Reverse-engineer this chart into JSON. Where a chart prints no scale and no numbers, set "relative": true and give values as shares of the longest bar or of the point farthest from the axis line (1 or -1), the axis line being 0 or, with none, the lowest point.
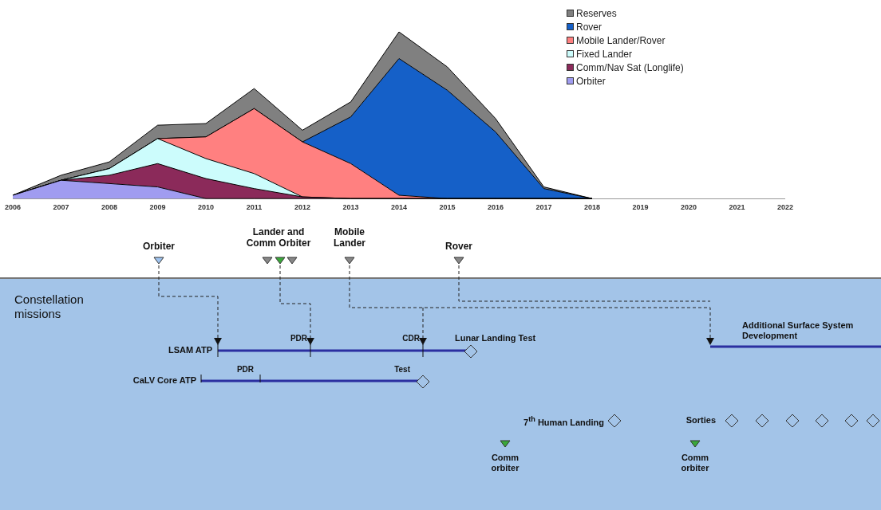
{
  "chart_data": [
    {
      "type": "area",
      "stacked": true,
      "relative": true,
      "x": [
        2006,
        2007,
        2008,
        2009,
        2010,
        2011,
        2012,
        2013,
        2014,
        2015,
        2016,
        2017,
        2018
      ],
      "xlim": [
        2006,
        2022
      ],
      "xticks": [
        2006,
        2007,
        2008,
        2009,
        2010,
        2011,
        2012,
        2013,
        2014,
        2015,
        2016,
        2017,
        2018,
        2019,
        2020,
        2021,
        2022
      ],
      "grid": false,
      "legend": "top right",
      "series": [
        {
          "name": "Orbiter",
          "color": "#a09cf0",
          "values": [
            0.02,
            0.11,
            0.09,
            0.07,
            0,
            0,
            0,
            0,
            0,
            0,
            0,
            0,
            0
          ]
        },
        {
          "name": "Comm/Nav Sat (Longlife)",
          "color": "#8b2a5a",
          "values": [
            0,
            0,
            0.05,
            0.14,
            0.12,
            0.06,
            0.01,
            0,
            0,
            0,
            0,
            0,
            0
          ]
        },
        {
          "name": "Fixed Lander",
          "color": "#ccfcfc",
          "values": [
            0,
            0,
            0.04,
            0.15,
            0.12,
            0.09,
            0,
            0,
            0,
            0,
            0,
            0,
            0
          ]
        },
        {
          "name": "Mobile Lander/Rover",
          "color": "#ff8080",
          "values": [
            0,
            0,
            0,
            0,
            0.13,
            0.39,
            0.33,
            0.21,
            0.02,
            0,
            0,
            0,
            0
          ]
        },
        {
          "name": "Rover",
          "color": "#1560c8",
          "values": [
            0,
            0,
            0,
            0,
            0,
            0,
            0,
            0.28,
            0.82,
            0.65,
            0.4,
            0.06,
            0
          ]
        },
        {
          "name": "Reserves",
          "color": "#808080",
          "values": [
            0,
            0.03,
            0.04,
            0.08,
            0.08,
            0.12,
            0.07,
            0.09,
            0.16,
            0.14,
            0.08,
            0.01,
            0
          ]
        }
      ]
    },
    {
      "type": "other",
      "annotations": [
        "Orbiter",
        "Lander and Comm Orbiter",
        "Mobile Lander",
        "Rover",
        "Constellation missions",
        "LSAM ATP",
        "PDR",
        "CDR",
        "Lunar Landing Test",
        "Additional Surface System Development",
        "CaLV Core ATP",
        "PDR",
        "Test",
        "7$^{th}$ Human Landing",
        "Sorties",
        "Comm orbiter",
        "Comm orbiter"
      ]
    }
  ]
}
